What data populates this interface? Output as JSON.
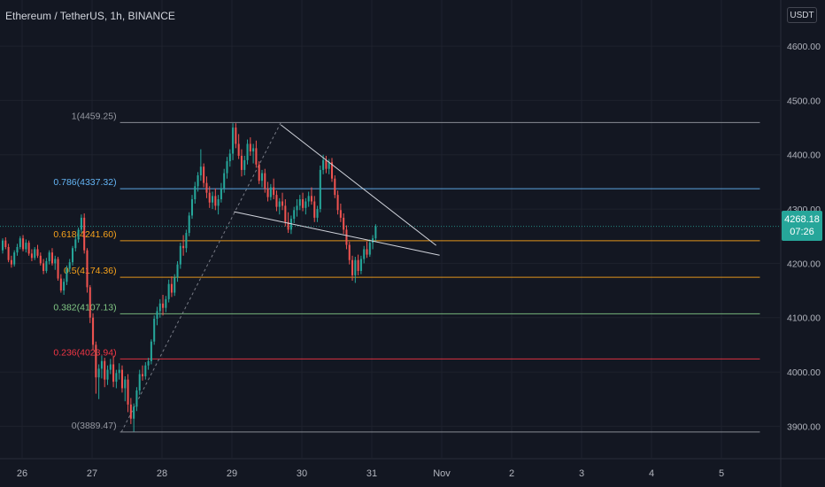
{
  "header": {
    "title": "Ethereum / TetherUS, 1h, BINANCE"
  },
  "currency": "USDT",
  "price_tag": {
    "price": "4268.18",
    "countdown": "07:26"
  },
  "colors": {
    "background": "#131722",
    "up": "#26a69a",
    "down": "#ef5350",
    "grid": "#1e222d",
    "axis_text": "#b2b5be",
    "trendline": "#d1d4dc"
  },
  "chart_data": {
    "type": "candlestick",
    "title": "Ethereum / TetherUS, 1h, BINANCE",
    "grid": true,
    "y_axis": {
      "range": [
        3855,
        4680
      ],
      "ticks": [
        "4600.00",
        "4500.00",
        "4400.00",
        "4300.00",
        "4200.00",
        "4100.00",
        "4000.00",
        "3900.00"
      ],
      "values": [
        4600,
        4500,
        4400,
        4300,
        4200,
        4100,
        4000,
        3900
      ]
    },
    "x_axis": {
      "ticks": [
        "26",
        "27",
        "28",
        "29",
        "30",
        "31",
        "Nov",
        "2",
        "3",
        "4",
        "5"
      ],
      "day_index": [
        0,
        1,
        2,
        3,
        4,
        5,
        6,
        7,
        8,
        9,
        10
      ],
      "range_days": [
        -0.32,
        10.8
      ]
    },
    "fibonacci": [
      {
        "label": "1(4459.25)",
        "value": 4459.25,
        "color": "#9598a1"
      },
      {
        "label": "0.786(4337.32)",
        "value": 4337.32,
        "color": "#64b5f6"
      },
      {
        "label": "0.618(4241.60)",
        "value": 4241.6,
        "color": "#f7a21b"
      },
      {
        "label": "0.5(4174.36)",
        "value": 4174.36,
        "color": "#f7a21b"
      },
      {
        "label": "0.382(4107.13)",
        "value": 4107.13,
        "color": "#81c784"
      },
      {
        "label": "0.236(4023.94)",
        "value": 4023.94,
        "color": "#f23645"
      },
      {
        "label": "0(3889.47)",
        "value": 3889.47,
        "color": "#9598a1"
      }
    ],
    "fib_range_days": [
      1.4,
      10.55
    ],
    "current_price": 4268.18,
    "trendlines": [
      {
        "x1": 3.03,
        "y1": 4295,
        "x2": 5.97,
        "y2": 4215
      },
      {
        "x1": 3.7,
        "y1": 4455,
        "x2": 5.92,
        "y2": 4233
      }
    ],
    "fib_anchor_line": {
      "x1": 1.42,
      "y1": 3889.47,
      "x2": 3.7,
      "y2": 4459.25
    },
    "candles_anchor": {
      "start_day": -0.32,
      "step_days": 0.04167
    },
    "candles": [
      [
        4218,
        4232,
        4206,
        4224
      ],
      [
        4224,
        4246,
        4218,
        4242
      ],
      [
        4242,
        4248,
        4226,
        4230
      ],
      [
        4230,
        4236,
        4202,
        4206
      ],
      [
        4206,
        4214,
        4192,
        4198
      ],
      [
        4198,
        4224,
        4194,
        4220
      ],
      [
        4220,
        4236,
        4214,
        4230
      ],
      [
        4230,
        4250,
        4226,
        4246
      ],
      [
        4246,
        4252,
        4222,
        4226
      ],
      [
        4226,
        4244,
        4220,
        4238
      ],
      [
        4238,
        4242,
        4214,
        4218
      ],
      [
        4218,
        4226,
        4204,
        4210
      ],
      [
        4210,
        4230,
        4206,
        4226
      ],
      [
        4226,
        4234,
        4210,
        4214
      ],
      [
        4214,
        4220,
        4196,
        4200
      ],
      [
        4200,
        4208,
        4180,
        4186
      ],
      [
        4186,
        4210,
        4182,
        4204
      ],
      [
        4204,
        4224,
        4198,
        4220
      ],
      [
        4220,
        4228,
        4196,
        4200
      ],
      [
        4200,
        4214,
        4188,
        4208
      ],
      [
        4208,
        4212,
        4168,
        4172
      ],
      [
        4172,
        4180,
        4146,
        4150
      ],
      [
        4150,
        4172,
        4142,
        4166
      ],
      [
        4166,
        4196,
        4160,
        4190
      ],
      [
        4190,
        4208,
        4184,
        4202
      ],
      [
        4202,
        4232,
        4196,
        4228
      ],
      [
        4228,
        4250,
        4222,
        4244
      ],
      [
        4244,
        4266,
        4238,
        4262
      ],
      [
        4262,
        4290,
        4256,
        4284
      ],
      [
        4284,
        4292,
        4218,
        4224
      ],
      [
        4224,
        4228,
        4146,
        4156
      ],
      [
        4156,
        4160,
        4090,
        4100
      ],
      [
        4100,
        4108,
        4040,
        4050
      ],
      [
        4050,
        4056,
        3960,
        3990
      ],
      [
        3990,
        4014,
        3950,
        4006
      ],
      [
        4006,
        4030,
        3988,
        4020
      ],
      [
        4020,
        4026,
        3972,
        3986
      ],
      [
        3986,
        4012,
        3976,
        4004
      ],
      [
        4004,
        4024,
        3996,
        4014
      ],
      [
        4014,
        4030,
        3972,
        3982
      ],
      [
        3982,
        4004,
        3970,
        3998
      ],
      [
        3998,
        4016,
        3986,
        4004
      ],
      [
        4004,
        4012,
        3962,
        3970
      ],
      [
        3970,
        3992,
        3946,
        3986
      ],
      [
        3986,
        3996,
        3926,
        3940
      ],
      [
        3940,
        3952,
        3904,
        3914
      ],
      [
        3914,
        3942,
        3890,
        3936
      ],
      [
        3936,
        3972,
        3928,
        3966
      ],
      [
        3966,
        4004,
        3958,
        3996
      ],
      [
        3996,
        4012,
        3984,
        3992
      ],
      [
        3992,
        4018,
        3986,
        4012
      ],
      [
        4012,
        4026,
        4004,
        4020
      ],
      [
        4020,
        4060,
        4014,
        4056
      ],
      [
        4056,
        4104,
        4050,
        4098
      ],
      [
        4098,
        4120,
        4086,
        4112
      ],
      [
        4112,
        4134,
        4100,
        4126
      ],
      [
        4126,
        4142,
        4104,
        4118
      ],
      [
        4118,
        4140,
        4110,
        4134
      ],
      [
        4134,
        4170,
        4128,
        4162
      ],
      [
        4162,
        4176,
        4138,
        4146
      ],
      [
        4146,
        4180,
        4140,
        4174
      ],
      [
        4174,
        4204,
        4166,
        4198
      ],
      [
        4198,
        4238,
        4190,
        4232
      ],
      [
        4232,
        4252,
        4214,
        4228
      ],
      [
        4228,
        4262,
        4220,
        4256
      ],
      [
        4256,
        4294,
        4250,
        4288
      ],
      [
        4288,
        4326,
        4282,
        4318
      ],
      [
        4318,
        4350,
        4310,
        4342
      ],
      [
        4342,
        4368,
        4332,
        4362
      ],
      [
        4362,
        4410,
        4352,
        4378
      ],
      [
        4378,
        4384,
        4340,
        4348
      ],
      [
        4348,
        4360,
        4320,
        4330
      ],
      [
        4330,
        4342,
        4302,
        4312
      ],
      [
        4312,
        4332,
        4300,
        4324
      ],
      [
        4324,
        4338,
        4298,
        4306
      ],
      [
        4306,
        4326,
        4290,
        4318
      ],
      [
        4318,
        4348,
        4312,
        4338
      ],
      [
        4338,
        4374,
        4330,
        4366
      ],
      [
        4366,
        4396,
        4356,
        4388
      ],
      [
        4388,
        4410,
        4378,
        4402
      ],
      [
        4402,
        4458,
        4390,
        4450
      ],
      [
        4450,
        4458,
        4412,
        4420
      ],
      [
        4420,
        4438,
        4392,
        4398
      ],
      [
        4398,
        4410,
        4360,
        4372
      ],
      [
        4372,
        4398,
        4362,
        4390
      ],
      [
        4390,
        4428,
        4382,
        4420
      ],
      [
        4420,
        4432,
        4398,
        4406
      ],
      [
        4406,
        4420,
        4384,
        4412
      ],
      [
        4412,
        4426,
        4376,
        4382
      ],
      [
        4382,
        4388,
        4346,
        4352
      ],
      [
        4352,
        4372,
        4340,
        4366
      ],
      [
        4366,
        4374,
        4330,
        4338
      ],
      [
        4338,
        4350,
        4314,
        4322
      ],
      [
        4322,
        4346,
        4316,
        4340
      ],
      [
        4340,
        4356,
        4318,
        4326
      ],
      [
        4326,
        4334,
        4296,
        4304
      ],
      [
        4304,
        4320,
        4290,
        4314
      ],
      [
        4314,
        4330,
        4298,
        4306
      ],
      [
        4306,
        4318,
        4268,
        4276
      ],
      [
        4276,
        4294,
        4256,
        4262
      ],
      [
        4262,
        4288,
        4254,
        4282
      ],
      [
        4282,
        4304,
        4274,
        4298
      ],
      [
        4298,
        4318,
        4286,
        4306
      ],
      [
        4306,
        4326,
        4298,
        4318
      ],
      [
        4318,
        4330,
        4296,
        4302
      ],
      [
        4302,
        4320,
        4290,
        4314
      ],
      [
        4314,
        4332,
        4304,
        4324
      ],
      [
        4324,
        4340,
        4308,
        4314
      ],
      [
        4314,
        4324,
        4276,
        4284
      ],
      [
        4284,
        4306,
        4276,
        4300
      ],
      [
        4300,
        4380,
        4294,
        4372
      ],
      [
        4372,
        4400,
        4364,
        4390
      ],
      [
        4390,
        4398,
        4366,
        4374
      ],
      [
        4374,
        4392,
        4364,
        4386
      ],
      [
        4386,
        4394,
        4350,
        4356
      ],
      [
        4356,
        4362,
        4320,
        4326
      ],
      [
        4326,
        4334,
        4290,
        4298
      ],
      [
        4298,
        4310,
        4276,
        4284
      ],
      [
        4284,
        4292,
        4254,
        4262
      ],
      [
        4262,
        4270,
        4226,
        4234
      ],
      [
        4234,
        4240,
        4198,
        4206
      ],
      [
        4206,
        4214,
        4168,
        4178
      ],
      [
        4178,
        4212,
        4164,
        4206
      ],
      [
        4206,
        4216,
        4178,
        4186
      ],
      [
        4186,
        4214,
        4180,
        4208
      ],
      [
        4208,
        4232,
        4200,
        4226
      ],
      [
        4226,
        4240,
        4210,
        4216
      ],
      [
        4216,
        4244,
        4212,
        4238
      ],
      [
        4238,
        4252,
        4226,
        4246
      ],
      [
        4246,
        4272,
        4240,
        4268
      ]
    ]
  }
}
